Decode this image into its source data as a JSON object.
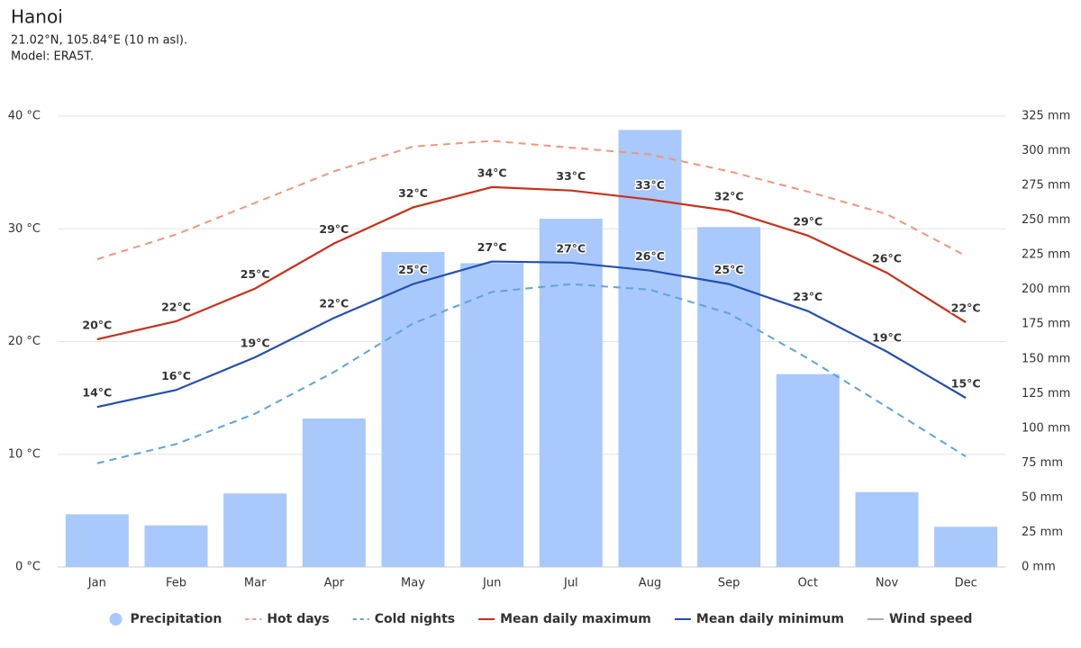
{
  "chart_data": {
    "type": "combo",
    "title": "Hanoi",
    "subtitle": [
      "21.02°N, 105.84°E (10 m asl).",
      "Model: ERA5T."
    ],
    "categories": [
      "Jan",
      "Feb",
      "Mar",
      "Apr",
      "May",
      "Jun",
      "Jul",
      "Aug",
      "Sep",
      "Oct",
      "Nov",
      "Dec"
    ],
    "ylim": [
      0,
      40
    ],
    "yticks": [
      {
        "value": 0,
        "label": "0 °C"
      },
      {
        "value": 10,
        "label": "10 °C"
      },
      {
        "value": 20,
        "label": "20 °C"
      },
      {
        "value": 30,
        "label": "30 °C"
      },
      {
        "value": 40,
        "label": "40 °C"
      }
    ],
    "y2lim": [
      0,
      325
    ],
    "y2ticks": [
      {
        "value": 0,
        "label": "0 mm"
      },
      {
        "value": 25,
        "label": "25 mm"
      },
      {
        "value": 50,
        "label": "50 mm"
      },
      {
        "value": 75,
        "label": "75 mm"
      },
      {
        "value": 100,
        "label": "100 mm"
      },
      {
        "value": 125,
        "label": "125 mm"
      },
      {
        "value": 150,
        "label": "150 mm"
      },
      {
        "value": 175,
        "label": "175 mm"
      },
      {
        "value": 200,
        "label": "200 mm"
      },
      {
        "value": 225,
        "label": "225 mm"
      },
      {
        "value": 250,
        "label": "250 mm"
      },
      {
        "value": 275,
        "label": "275 mm"
      },
      {
        "value": 300,
        "label": "300 mm"
      },
      {
        "value": 325,
        "label": "325 mm"
      }
    ],
    "grid": true,
    "legend": "bottom",
    "series": [
      {
        "name": "Precipitation",
        "type": "bar",
        "axis": "y2",
        "color": "#a9c8fb",
        "values": [
          38,
          30,
          53,
          107,
          227,
          219,
          251,
          315,
          245,
          139,
          54,
          29
        ]
      },
      {
        "name": "Hot days",
        "type": "line",
        "dash": true,
        "color": "#f0967a",
        "values": [
          27.3,
          29.5,
          32.3,
          35.1,
          37.3,
          37.8,
          37.2,
          36.6,
          35.1,
          33.3,
          31.3,
          27.6
        ]
      },
      {
        "name": "Cold nights",
        "type": "line",
        "dash": true,
        "color": "#5fa3dc",
        "values": [
          9.2,
          10.9,
          13.6,
          17.3,
          21.6,
          24.4,
          25.1,
          24.6,
          22.5,
          18.5,
          14.2,
          9.8
        ]
      },
      {
        "name": "Mean daily maximum",
        "type": "line",
        "color": "#c8311a",
        "values": [
          20.2,
          21.8,
          24.7,
          28.7,
          31.9,
          33.7,
          33.4,
          32.6,
          31.6,
          29.4,
          26.1,
          21.7
        ],
        "value_labels": [
          "20°C",
          "22°C",
          "25°C",
          "29°C",
          "32°C",
          "34°C",
          "33°C",
          "33°C",
          "32°C",
          "29°C",
          "26°C",
          "22°C"
        ]
      },
      {
        "name": "Mean daily minimum",
        "type": "line",
        "color": "#2350b0",
        "values": [
          14.2,
          15.7,
          18.6,
          22.1,
          25.1,
          27.1,
          27.0,
          26.3,
          25.1,
          22.7,
          19.1,
          15.0
        ],
        "value_labels": [
          "14°C",
          "16°C",
          "19°C",
          "22°C",
          "25°C",
          "27°C",
          "27°C",
          "26°C",
          "25°C",
          "23°C",
          "19°C",
          "15°C"
        ]
      },
      {
        "name": "Wind speed",
        "type": "line",
        "hidden": true,
        "color": "#aaaaaa"
      }
    ]
  }
}
